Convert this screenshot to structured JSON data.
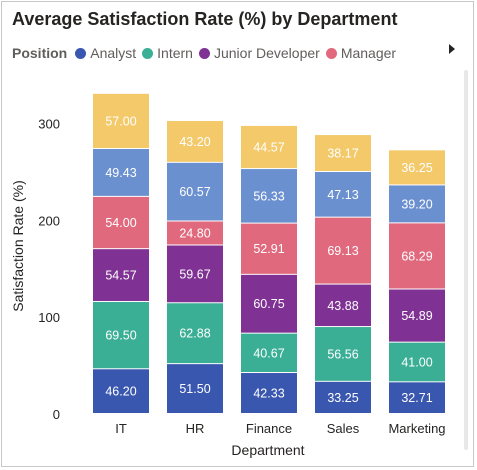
{
  "colors": {
    "Analyst": "#3a57b0",
    "Intern": "#3aaf95",
    "Junior Developer": "#7f3293",
    "Manager": "#e1697d",
    "s5": "#6a90cf",
    "s6": "#f3c96a"
  },
  "icons": {
    "legend_scroll": "chevron-right-icon"
  },
  "chart_data": {
    "type": "bar",
    "stacked": true,
    "title": "Average Satisfaction Rate (%) by Department",
    "xlabel": "Department",
    "ylabel": "Satisfaction Rate (%)",
    "ylim": [
      0,
      345
    ],
    "yticks": [
      0,
      100,
      200,
      300
    ],
    "grid": false,
    "legend": {
      "title": "Position",
      "placement": "top-left",
      "entries": [
        "Analyst",
        "Intern",
        "Junior Developer",
        "Manager"
      ]
    },
    "categories": [
      "IT",
      "HR",
      "Finance",
      "Sales",
      "Marketing"
    ],
    "series": [
      {
        "name": "Analyst",
        "values": [
          46.2,
          51.5,
          42.33,
          33.25,
          32.71
        ],
        "labels": [
          "46.20",
          "51.50",
          "42.33",
          "33.25",
          "32.71"
        ]
      },
      {
        "name": "Intern",
        "values": [
          69.5,
          62.88,
          40.67,
          56.56,
          41.0
        ],
        "labels": [
          "69.50",
          "62.88",
          "40.67",
          "56.56",
          "41.00"
        ]
      },
      {
        "name": "Junior Developer",
        "values": [
          54.57,
          59.67,
          60.75,
          43.88,
          54.89
        ],
        "labels": [
          "54.57",
          "59.67",
          "60.75",
          "43.88",
          "54.89"
        ]
      },
      {
        "name": "Manager",
        "values": [
          54.0,
          24.8,
          52.91,
          69.13,
          68.29
        ],
        "labels": [
          "54.00",
          "24.80",
          "52.91",
          "69.13",
          "68.29"
        ]
      },
      {
        "key": "s5",
        "values": [
          49.43,
          60.57,
          56.33,
          47.13,
          39.2
        ],
        "labels": [
          "49.43",
          "60.57",
          "56.33",
          "47.13",
          "39.20"
        ]
      },
      {
        "key": "s6",
        "values": [
          57.0,
          43.2,
          44.57,
          38.17,
          36.25
        ],
        "labels": [
          "57.00",
          "43.20",
          "44.57",
          "38.17",
          "36.25"
        ]
      }
    ]
  }
}
